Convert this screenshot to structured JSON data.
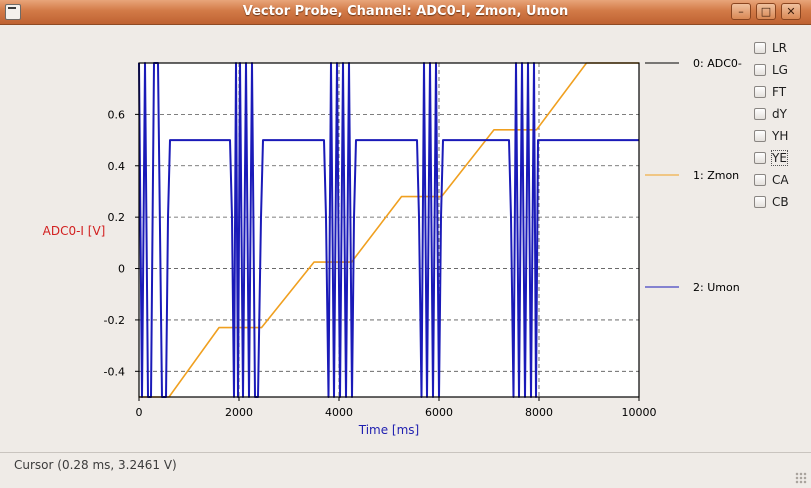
{
  "window": {
    "title": "Vector Probe, Channel: ADC0-I, Zmon, Umon",
    "buttons": {
      "minimize": "–",
      "maximize": "□",
      "close": "✕"
    }
  },
  "checkboxes": [
    {
      "label": "LR",
      "checked": false
    },
    {
      "label": "LG",
      "checked": false
    },
    {
      "label": "FT",
      "checked": false
    },
    {
      "label": "dY",
      "checked": false
    },
    {
      "label": "YH",
      "checked": false
    },
    {
      "label": "YE",
      "checked": false,
      "focused": true
    },
    {
      "label": "CA",
      "checked": false
    },
    {
      "label": "CB",
      "checked": false
    }
  ],
  "status": {
    "cursor_text": "Cursor (0.28 ms, 3.2461 V)"
  },
  "chart_data": {
    "type": "line",
    "ylabel": "ADC0-I [V]",
    "xlabel": "Time [ms]",
    "xlim": [
      0,
      10000
    ],
    "ylim": [
      -0.5,
      0.8
    ],
    "xticks": [
      "0",
      "2000",
      "4000",
      "6000",
      "8000",
      "10000"
    ],
    "yticks": [
      "-0.4",
      "-0.2",
      "0",
      "0.2",
      "0.4",
      "0.6"
    ],
    "grid": true,
    "legend": "right",
    "colors": {
      "ylabel": "#d21f1f",
      "xlabel": "#1f1fb0",
      "axes": "#000000"
    },
    "series": [
      {
        "name": "0: ADC0-",
        "color": "#000000",
        "x": [],
        "y": []
      },
      {
        "name": "1: Zmon",
        "color": "#f0a020",
        "x": [
          0,
          600,
          1600,
          1900,
          2450,
          3500,
          4250,
          5250,
          6050,
          7100,
          7950,
          8950,
          10000
        ],
        "y": [
          -0.5,
          -0.5,
          -0.23,
          -0.23,
          -0.23,
          0.025,
          0.025,
          0.28,
          0.28,
          0.54,
          0.54,
          0.8,
          0.8
        ]
      },
      {
        "name": "2: Umon",
        "color": "#1a1ab8",
        "x": [
          0,
          60,
          120,
          180,
          240,
          300,
          380,
          460,
          540,
          580,
          620,
          660,
          700,
          1820,
          1860,
          1900,
          1940,
          1980,
          2020,
          2080,
          2140,
          2200,
          2260,
          2320,
          2380,
          2440,
          2480,
          2520,
          3700,
          3740,
          3790,
          3840,
          3900,
          3960,
          4020,
          4080,
          4140,
          4200,
          4260,
          4300,
          4340,
          5560,
          5600,
          5650,
          5700,
          5760,
          5820,
          5880,
          5940,
          6000,
          6040,
          6080,
          7400,
          7440,
          7490,
          7540,
          7600,
          7660,
          7720,
          7780,
          7840,
          7900,
          7940,
          7980,
          10000
        ],
        "y": [
          0.8,
          -0.5,
          0.8,
          -0.5,
          -0.5,
          0.8,
          0.8,
          -0.5,
          -0.5,
          0.2,
          0.5,
          0.5,
          0.5,
          0.5,
          0.2,
          -0.5,
          0.8,
          -0.5,
          0.8,
          -0.5,
          0.8,
          -0.5,
          0.8,
          -0.5,
          -0.5,
          0.2,
          0.5,
          0.5,
          0.5,
          0.2,
          -0.5,
          0.8,
          -0.5,
          0.8,
          -0.5,
          0.8,
          -0.5,
          0.8,
          -0.5,
          0.2,
          0.5,
          0.5,
          0.2,
          -0.5,
          0.8,
          -0.5,
          0.8,
          -0.5,
          0.8,
          -0.5,
          0.2,
          0.5,
          0.5,
          0.2,
          -0.5,
          0.8,
          -0.5,
          0.8,
          -0.5,
          0.8,
          -0.5,
          0.8,
          -0.5,
          0.5,
          0.5
        ]
      }
    ]
  }
}
